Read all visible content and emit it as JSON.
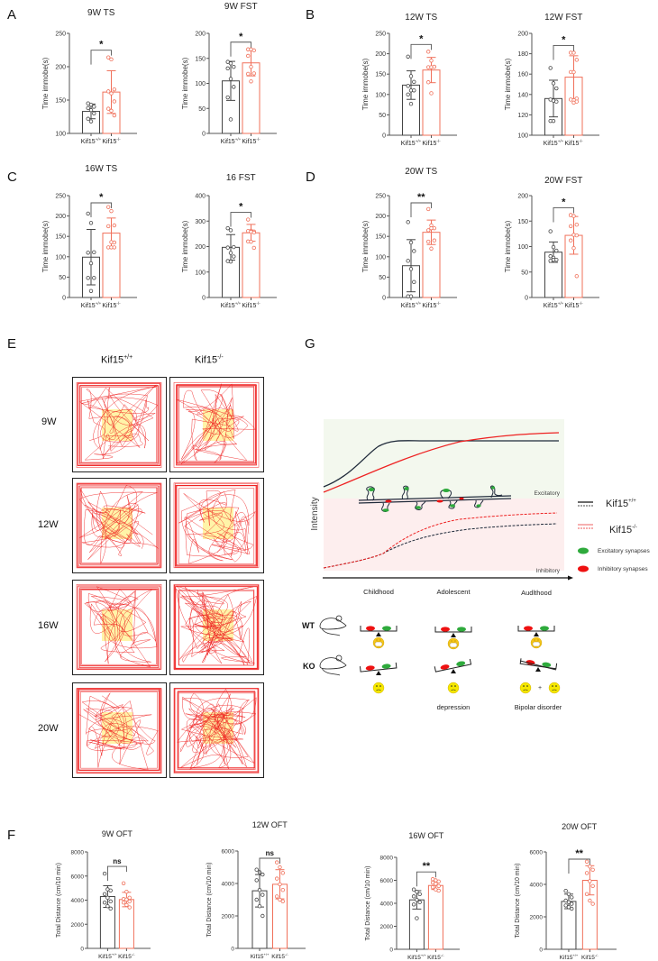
{
  "panels": {
    "A": "A",
    "B": "B",
    "C": "C",
    "D": "D",
    "E": "E",
    "F": "F",
    "G": "G"
  },
  "groups": {
    "wt": "Kif15",
    "wt_sup": "+/+",
    "ko": "Kif15",
    "ko_sup": "-/-"
  },
  "colors": {
    "wt": "#444444",
    "ko": "#f0705a",
    "track": "#ee1c1c",
    "center_zone": "#fff4a8",
    "excitatory_bg": "#f3f8ee",
    "inhibitory_bg": "#fdeeee",
    "excitatory_synapse": "#2eaa3c",
    "inhibitory_synapse": "#ee1111",
    "wt_curve": "#1f2a3a",
    "ko_curve": "#ee2222"
  },
  "chart_data": [
    {
      "id": "9w-ts",
      "type": "bar",
      "title": "9W TS",
      "panel": "A",
      "ylabel": "Time immobe(s)",
      "ylim": [
        100,
        250
      ],
      "yticks": [
        100,
        150,
        200,
        250
      ],
      "categories": [
        "Kif15+/+",
        "Kif15-/-"
      ],
      "means": [
        133,
        162
      ],
      "sd": [
        11,
        32
      ],
      "points": [
        [
          145,
          143,
          140,
          138,
          135,
          130,
          122,
          118
        ],
        [
          214,
          211,
          166,
          163,
          160,
          148,
          137,
          134,
          127
        ]
      ],
      "significance": "*"
    },
    {
      "id": "9w-fst",
      "type": "bar",
      "title": "9W FST",
      "panel": "A",
      "ylabel": "Time immobe(s)",
      "ylim": [
        0,
        200
      ],
      "yticks": [
        0,
        50,
        100,
        150,
        200
      ],
      "categories": [
        "Kif15+/+",
        "Kif15-/-"
      ],
      "means": [
        105,
        141
      ],
      "sd": [
        39,
        26
      ],
      "points": [
        [
          143,
          140,
          133,
          130,
          109,
          93,
          72,
          28
        ],
        [
          168,
          168,
          166,
          155,
          133,
          120,
          119,
          104
        ]
      ],
      "significance": "*"
    },
    {
      "id": "12w-ts",
      "type": "bar",
      "title": "12W TS",
      "panel": "B",
      "ylabel": "Time immobe(s)",
      "ylim": [
        0,
        250
      ],
      "yticks": [
        0,
        50,
        100,
        150,
        200,
        250
      ],
      "categories": [
        "Kif15+/+",
        "Kif15-/-"
      ],
      "means": [
        123,
        160
      ],
      "sd": [
        35,
        31
      ],
      "points": [
        [
          193,
          145,
          131,
          121,
          110,
          110,
          100,
          77
        ],
        [
          205,
          183,
          168,
          167,
          167,
          168,
          130,
          103
        ]
      ],
      "significance": "*"
    },
    {
      "id": "12w-fst",
      "type": "bar",
      "title": "12W FST",
      "panel": "B",
      "ylabel": "Time immobe(s)",
      "ylim": [
        100,
        200
      ],
      "yticks": [
        100,
        120,
        140,
        160,
        180,
        200
      ],
      "categories": [
        "Kif15+/+",
        "Kif15-/-"
      ],
      "means": [
        136,
        157
      ],
      "sd": [
        18,
        21
      ],
      "points": [
        [
          166,
          151,
          146,
          135,
          134,
          133,
          114,
          114
        ],
        [
          181,
          181,
          174,
          162,
          162,
          136,
          135,
          132,
          133
        ]
      ],
      "significance": "*"
    },
    {
      "id": "16w-ts",
      "type": "bar",
      "title": "16W TS",
      "panel": "C",
      "ylabel": "Time immobe(s)",
      "ylim": [
        0,
        250
      ],
      "yticks": [
        0,
        50,
        100,
        150,
        200,
        250
      ],
      "categories": [
        "Kif15+/+",
        "Kif15-/-"
      ],
      "means": [
        99,
        158
      ],
      "sd": [
        68,
        37
      ],
      "points": [
        [
          206,
          183,
          111,
          110,
          84,
          48,
          48,
          16
        ],
        [
          222,
          212,
          177,
          175,
          136,
          135,
          123,
          123,
          123
        ]
      ],
      "significance": "*"
    },
    {
      "id": "16-fst",
      "type": "bar",
      "title": "16 FST",
      "panel": "C",
      "ylabel": "Time immobe(s)",
      "ylim": [
        0,
        400
      ],
      "yticks": [
        0,
        100,
        200,
        300,
        400
      ],
      "categories": [
        "Kif15+/+",
        "Kif15-/-"
      ],
      "means": [
        197,
        254
      ],
      "sd": [
        50,
        33
      ],
      "points": [
        [
          272,
          264,
          198,
          196,
          175,
          161,
          143,
          141
        ],
        [
          306,
          262,
          259,
          261,
          258,
          255,
          220,
          219,
          195
        ]
      ],
      "significance": "*"
    },
    {
      "id": "20w-ts",
      "type": "bar",
      "title": "20W TS",
      "panel": "D",
      "ylabel": "Time immobe(s)",
      "ylim": [
        0,
        250
      ],
      "yticks": [
        0,
        50,
        100,
        150,
        200,
        250
      ],
      "categories": [
        "Kif15+/+",
        "Kif15-/-"
      ],
      "means": [
        78,
        160
      ],
      "sd": [
        64,
        30
      ],
      "points": [
        [
          185,
          135,
          114,
          90,
          70,
          38,
          3,
          3
        ],
        [
          217,
          177,
          170,
          165,
          170,
          140,
          137,
          120
        ]
      ],
      "significance": "**"
    },
    {
      "id": "20w-fst",
      "type": "bar",
      "title": "20W FST",
      "panel": "D",
      "ylabel": "Time immobe(s)",
      "ylim": [
        0,
        200
      ],
      "yticks": [
        0,
        50,
        100,
        150,
        200
      ],
      "categories": [
        "Kif15+/+",
        "Kif15-/-"
      ],
      "means": [
        89,
        122
      ],
      "sd": [
        20,
        37
      ],
      "points": [
        [
          130,
          99,
          92,
          81,
          78,
          74,
          72,
          74
        ],
        [
          162,
          160,
          143,
          140,
          123,
          122,
          112,
          97,
          42
        ]
      ],
      "significance": "*"
    },
    {
      "id": "9w-oft",
      "type": "bar",
      "title": "9W OFT",
      "panel": "F",
      "ylabel": "Total Distance (cm/10 min)",
      "ylim": [
        0,
        8000
      ],
      "yticks": [
        0,
        2000,
        4000,
        6000,
        8000
      ],
      "categories": [
        "Kif15+/+",
        "Kif15-/-"
      ],
      "means": [
        4300,
        4050
      ],
      "sd": [
        900,
        600
      ],
      "points": [
        [
          6200,
          4900,
          4800,
          4500,
          4200,
          3900,
          3800,
          3500,
          3300
        ],
        [
          5400,
          4700,
          4200,
          4100,
          4050,
          3900,
          3800,
          3600,
          3400
        ]
      ],
      "significance": "ns"
    },
    {
      "id": "12w-oft",
      "type": "bar",
      "title": "12W OFT",
      "panel": "F",
      "ylabel": "Total Distance (cm/10 min)",
      "ylim": [
        0,
        6000
      ],
      "yticks": [
        0,
        2000,
        4000,
        6000
      ],
      "categories": [
        "Kif15+/+",
        "Kif15-/-"
      ],
      "means": [
        3550,
        3950
      ],
      "sd": [
        1000,
        900
      ],
      "points": [
        [
          4850,
          4700,
          4550,
          4200,
          3600,
          3300,
          3000,
          2600,
          2000
        ],
        [
          5300,
          5000,
          4650,
          4300,
          3950,
          3600,
          3200,
          3000,
          2900
        ]
      ],
      "significance": "ns"
    },
    {
      "id": "16w-oft",
      "type": "bar",
      "title": "16W OFT",
      "panel": "F",
      "ylabel": "Total Distance (cm/10 min)",
      "ylim": [
        0,
        8000
      ],
      "yticks": [
        0,
        2000,
        4000,
        6000,
        8000
      ],
      "categories": [
        "Kif15+/+",
        "Kif15-/-"
      ],
      "means": [
        4300,
        5550
      ],
      "sd": [
        800,
        350
      ],
      "points": [
        [
          5200,
          5000,
          4800,
          4600,
          4300,
          4100,
          3900,
          2700
        ],
        [
          6100,
          6000,
          5900,
          5800,
          5700,
          5500,
          5400,
          5200,
          5100
        ]
      ],
      "significance": "**"
    },
    {
      "id": "20w-oft",
      "type": "bar",
      "title": "20W OFT",
      "panel": "F",
      "ylabel": "Total Distance (cm/10 min)",
      "ylim": [
        0,
        6000
      ],
      "yticks": [
        0,
        2000,
        4000,
        6000
      ],
      "categories": [
        "Kif15+/+",
        "Kif15-/-"
      ],
      "means": [
        2950,
        4250
      ],
      "sd": [
        450,
        900
      ],
      "points": [
        [
          3600,
          3400,
          3200,
          3000,
          2900,
          2800,
          2700,
          2600,
          2500
        ],
        [
          5400,
          5100,
          4900,
          4700,
          4200,
          3900,
          3400,
          3000,
          2800
        ]
      ],
      "significance": "**"
    }
  ],
  "open_field": {
    "columns": [
      "Kif15",
      "Kif15"
    ],
    "column_sups": [
      "+/+",
      "-/-"
    ],
    "rows": [
      "9W",
      "12W",
      "16W",
      "20W"
    ]
  },
  "model": {
    "y_axis_label": "Intensity",
    "zone_excitatory": "Excitatory",
    "zone_inhibitory": "Inhibitory",
    "x_stages": [
      "Childhood",
      "Adolescent",
      "Audlthood"
    ],
    "legend": {
      "wt_label": "Kif15",
      "wt_sup": "+/+",
      "ko_label": "Kif15",
      "ko_sup": "-/-",
      "excitatory_label": "Excitatory synapses",
      "inhibitory_label": "Inhibitory synapses"
    },
    "genotypes": [
      "WT",
      "KO"
    ],
    "outcomes": [
      "",
      "depression",
      "Bipolar disorder"
    ],
    "plus_sign": "+"
  }
}
